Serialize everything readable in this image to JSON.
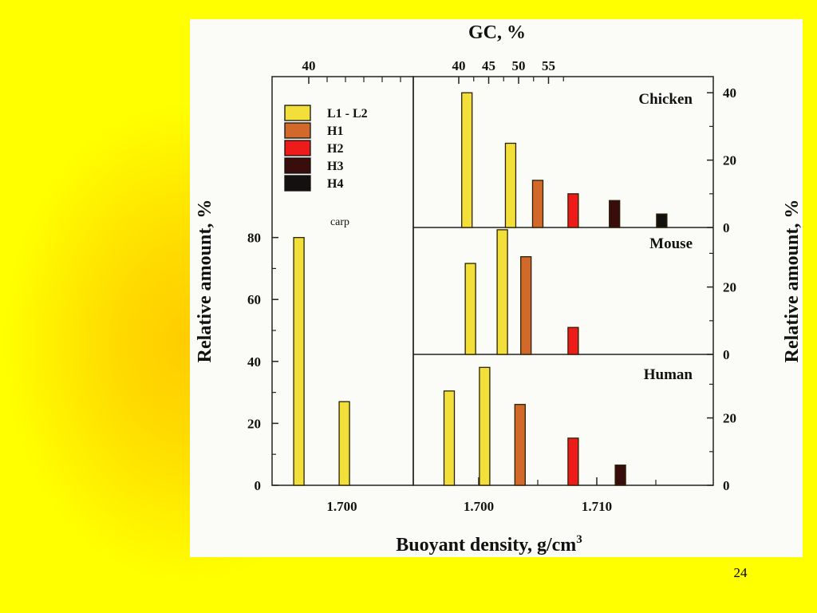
{
  "slide_number": "24",
  "chart_data": {
    "type": "bar",
    "top_axis_label": "GC, %",
    "xlabel": "Buoyant density, g/cm",
    "xlabel_superscript": "3",
    "ylabel_left": "Relative amount, %",
    "ylabel_right": "Relative amount, %",
    "legend": [
      {
        "name": "L1 - L2",
        "color": "#f2df3a"
      },
      {
        "name": "H1",
        "color": "#d2692a"
      },
      {
        "name": "H2",
        "color": "#ee1b1b"
      },
      {
        "name": "H3",
        "color": "#3a0d0d"
      },
      {
        "name": "H4",
        "color": "#151010"
      }
    ],
    "panels": [
      {
        "id": "carp",
        "label": "carp",
        "x_ticks": [
          {
            "value": 1.7,
            "label": "1.700"
          }
        ],
        "top_ticks": [
          {
            "value": 40,
            "label": "40"
          }
        ],
        "y_ticks": [
          {
            "value": 0,
            "label": "0"
          },
          {
            "value": 20,
            "label": "20"
          },
          {
            "value": 40,
            "label": "40"
          },
          {
            "value": 60,
            "label": "60"
          },
          {
            "value": 80,
            "label": "80"
          }
        ],
        "bars": [
          {
            "density": 1.6965,
            "value": 80,
            "family": "L1 - L2"
          },
          {
            "density": 1.7002,
            "value": 27,
            "family": "L1 - L2"
          }
        ]
      },
      {
        "id": "chicken",
        "label": "Chicken",
        "top_ticks": [
          {
            "value": 40,
            "label": "40"
          },
          {
            "value": 45,
            "label": "45"
          },
          {
            "value": 50,
            "label": "50"
          },
          {
            "value": 55,
            "label": "55"
          }
        ],
        "y_ticks": [
          {
            "value": 0,
            "label": "0"
          },
          {
            "value": 20,
            "label": "20"
          },
          {
            "value": 40,
            "label": "40"
          }
        ],
        "bars": [
          {
            "density": 1.699,
            "value": 40,
            "family": "L1 - L2"
          },
          {
            "density": 1.7027,
            "value": 25,
            "family": "L1 - L2"
          },
          {
            "density": 1.705,
            "value": 14,
            "family": "H1"
          },
          {
            "density": 1.708,
            "value": 10,
            "family": "H2"
          },
          {
            "density": 1.7115,
            "value": 8,
            "family": "H3"
          },
          {
            "density": 1.7155,
            "value": 4,
            "family": "H4"
          }
        ]
      },
      {
        "id": "mouse",
        "label": "Mouse",
        "y_ticks": [
          {
            "value": 0,
            "label": "0"
          },
          {
            "value": 20,
            "label": "20"
          }
        ],
        "bars": [
          {
            "density": 1.6993,
            "value": 27,
            "family": "L1 - L2"
          },
          {
            "density": 1.702,
            "value": 37,
            "family": "L1 - L2"
          },
          {
            "density": 1.704,
            "value": 29,
            "family": "H1"
          },
          {
            "density": 1.708,
            "value": 8,
            "family": "H2"
          }
        ]
      },
      {
        "id": "human",
        "label": "Human",
        "x_ticks": [
          {
            "value": 1.7,
            "label": "1.700"
          },
          {
            "value": 1.71,
            "label": "1.710"
          }
        ],
        "y_ticks": [
          {
            "value": 0,
            "label": "0"
          },
          {
            "value": 20,
            "label": "20"
          }
        ],
        "bars": [
          {
            "density": 1.6975,
            "value": 28,
            "family": "L1 - L2"
          },
          {
            "density": 1.7005,
            "value": 35,
            "family": "L1 - L2"
          },
          {
            "density": 1.7035,
            "value": 24,
            "family": "H1"
          },
          {
            "density": 1.708,
            "value": 14,
            "family": "H2"
          },
          {
            "density": 1.712,
            "value": 6,
            "family": "H3"
          }
        ]
      }
    ]
  }
}
